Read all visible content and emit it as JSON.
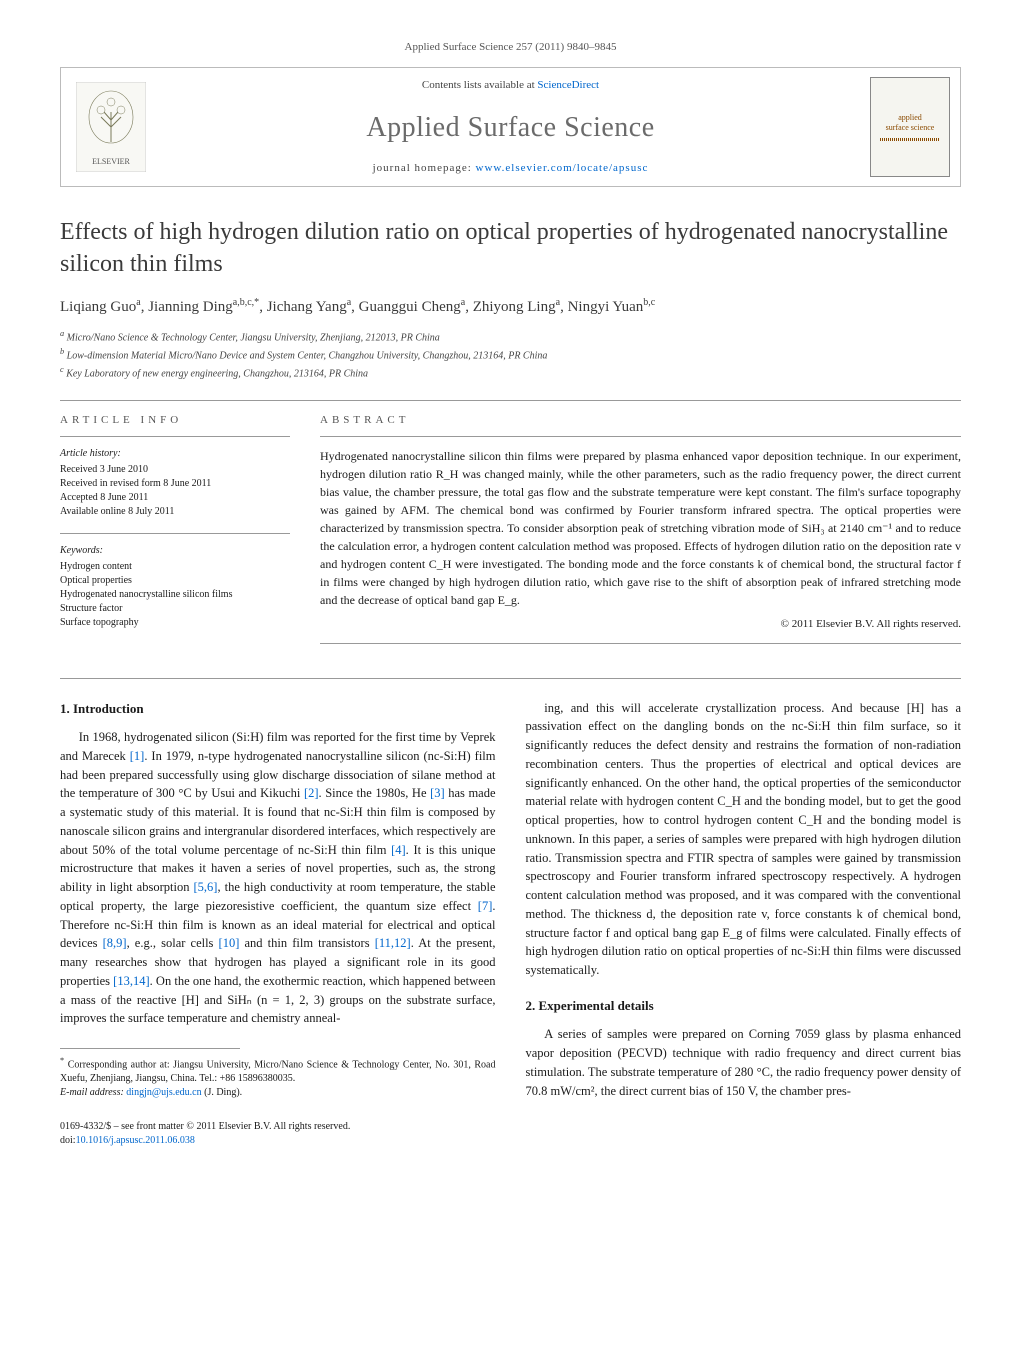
{
  "header": {
    "pageinfo": "Applied Surface Science 257 (2011) 9840–9845",
    "availability_prefix": "Contents lists available at ",
    "availability_link": "ScienceDirect",
    "journal_name": "Applied Surface Science",
    "homepage_prefix": "journal homepage: ",
    "homepage_url": "www.elsevier.com/locate/apsusc",
    "cover_text": "applied\nsurface science",
    "elsevier_label": "ELSEVIER"
  },
  "title": "Effects of high hydrogen dilution ratio on optical properties of hydrogenated nanocrystalline silicon thin films",
  "authors_html": "Liqiang Guo<sup>a</sup>, Jianning Ding<sup>a,b,c,*</sup>, Jichang Yang<sup>a</sup>, Guanggui Cheng<sup>a</sup>, Zhiyong Ling<sup>a</sup>, Ningyi Yuan<sup>b,c</sup>",
  "affiliations": [
    "a Micro/Nano Science & Technology Center, Jiangsu University, Zhenjiang, 212013, PR China",
    "b Low-dimension Material Micro/Nano Device and System Center, Changzhou University, Changzhou, 213164, PR China",
    "c Key Laboratory of new energy engineering, Changzhou, 213164, PR China"
  ],
  "info": {
    "heading": "ARTICLE INFO",
    "history_label": "Article history:",
    "history": [
      "Received 3 June 2010",
      "Received in revised form 8 June 2011",
      "Accepted 8 June 2011",
      "Available online 8 July 2011"
    ],
    "keywords_label": "Keywords:",
    "keywords": [
      "Hydrogen content",
      "Optical properties",
      "Hydrogenated nanocrystalline silicon films",
      "Structure factor",
      "Surface topography"
    ]
  },
  "abstract": {
    "heading": "ABSTRACT",
    "text": "Hydrogenated nanocrystalline silicon thin films were prepared by plasma enhanced vapor deposition technique. In our experiment, hydrogen dilution ratio R_H was changed mainly, while the other parameters, such as the radio frequency power, the direct current bias value, the chamber pressure, the total gas flow and the substrate temperature were kept constant. The film's surface topography was gained by AFM. The chemical bond was confirmed by Fourier transform infrared spectra. The optical properties were characterized by transmission spectra. To consider absorption peak of stretching vibration mode of SiH₃ at 2140 cm⁻¹ and to reduce the calculation error, a hydrogen content calculation method was proposed. Effects of hydrogen dilution ratio on the deposition rate v and hydrogen content C_H were investigated. The bonding mode and the force constants k of chemical bond, the structural factor f in films were changed by high hydrogen dilution ratio, which gave rise to the shift of absorption peak of infrared stretching mode and the decrease of optical band gap E_g.",
    "copyright": "© 2011 Elsevier B.V. All rights reserved."
  },
  "body": {
    "sec1_heading": "1. Introduction",
    "col1_p1": "In 1968, hydrogenated silicon (Si:H) film was reported for the first time by Veprek and Marecek [1]. In 1979, n-type hydrogenated nanocrystalline silicon (nc-Si:H) film had been prepared successfully using glow discharge dissociation of silane method at the temperature of 300 °C by Usui and Kikuchi [2]. Since the 1980s, He [3] has made a systematic study of this material. It is found that nc-Si:H thin film is composed by nanoscale silicon grains and intergranular disordered interfaces, which respectively are about 50% of the total volume percentage of nc-Si:H thin film [4]. It is this unique microstructure that makes it haven a series of novel properties, such as, the strong ability in light absorption [5,6], the high conductivity at room temperature, the stable optical property, the large piezoresistive coefficient, the quantum size effect [7]. Therefore nc-Si:H thin film is known as an ideal material for electrical and optical devices [8,9], e.g., solar cells [10] and thin film transistors [11,12]. At the present, many researches show that hydrogen has played a significant role in its good properties [13,14]. On the one hand, the exothermic reaction, which happened between a mass of the reactive [H] and SiHₙ (n = 1, 2, 3) groups on the substrate surface, improves the surface temperature and chemistry anneal-",
    "col2_p1": "ing, and this will accelerate crystallization process. And because [H] has a passivation effect on the dangling bonds on the nc-Si:H thin film surface, so it significantly reduces the defect density and restrains the formation of non-radiation recombination centers. Thus the properties of electrical and optical devices are significantly enhanced. On the other hand, the optical properties of the semiconductor material relate with hydrogen content C_H and the bonding model, but to get the good optical properties, how to control hydrogen content C_H and the bonding model is unknown. In this paper, a series of samples were prepared with high hydrogen dilution ratio. Transmission spectra and FTIR spectra of samples were gained by transmission spectroscopy and Fourier transform infrared spectroscopy respectively. A hydrogen content calculation method was proposed, and it was compared with the conventional method. The thickness d, the deposition rate v, force constants k of chemical bond, structure factor f and optical bang gap E_g of films were calculated. Finally effects of high hydrogen dilution ratio on optical properties of nc-Si:H thin films were discussed systematically.",
    "sec2_heading": "2. Experimental details",
    "col2_p2": "A series of samples were prepared on Corning 7059 glass by plasma enhanced vapor deposition (PECVD) technique with radio frequency and direct current bias stimulation. The substrate temperature of 280 °C, the radio frequency power density of 70.8 mW/cm², the direct current bias of 150 V, the chamber pres-"
  },
  "footer": {
    "corresp_symbol": "*",
    "corresp_text": "Corresponding author at: Jiangsu University, Micro/Nano Science & Technology Center, No. 301, Road Xuefu, Zhenjiang, Jiangsu, China. Tel.: +86 15896380035.",
    "email_label": "E-mail address: ",
    "email": "dingjn@ujs.edu.cn",
    "email_suffix": " (J. Ding).",
    "issn_line": "0169-4332/$ – see front matter © 2011 Elsevier B.V. All rights reserved.",
    "doi_prefix": "doi:",
    "doi": "10.1016/j.apsusc.2011.06.038"
  },
  "colors": {
    "link": "#0066cc",
    "text": "#1a1a1a",
    "muted": "#555555",
    "rule": "#999999",
    "journal_name": "#6b6b6b",
    "cover_accent": "#8a4a00"
  }
}
